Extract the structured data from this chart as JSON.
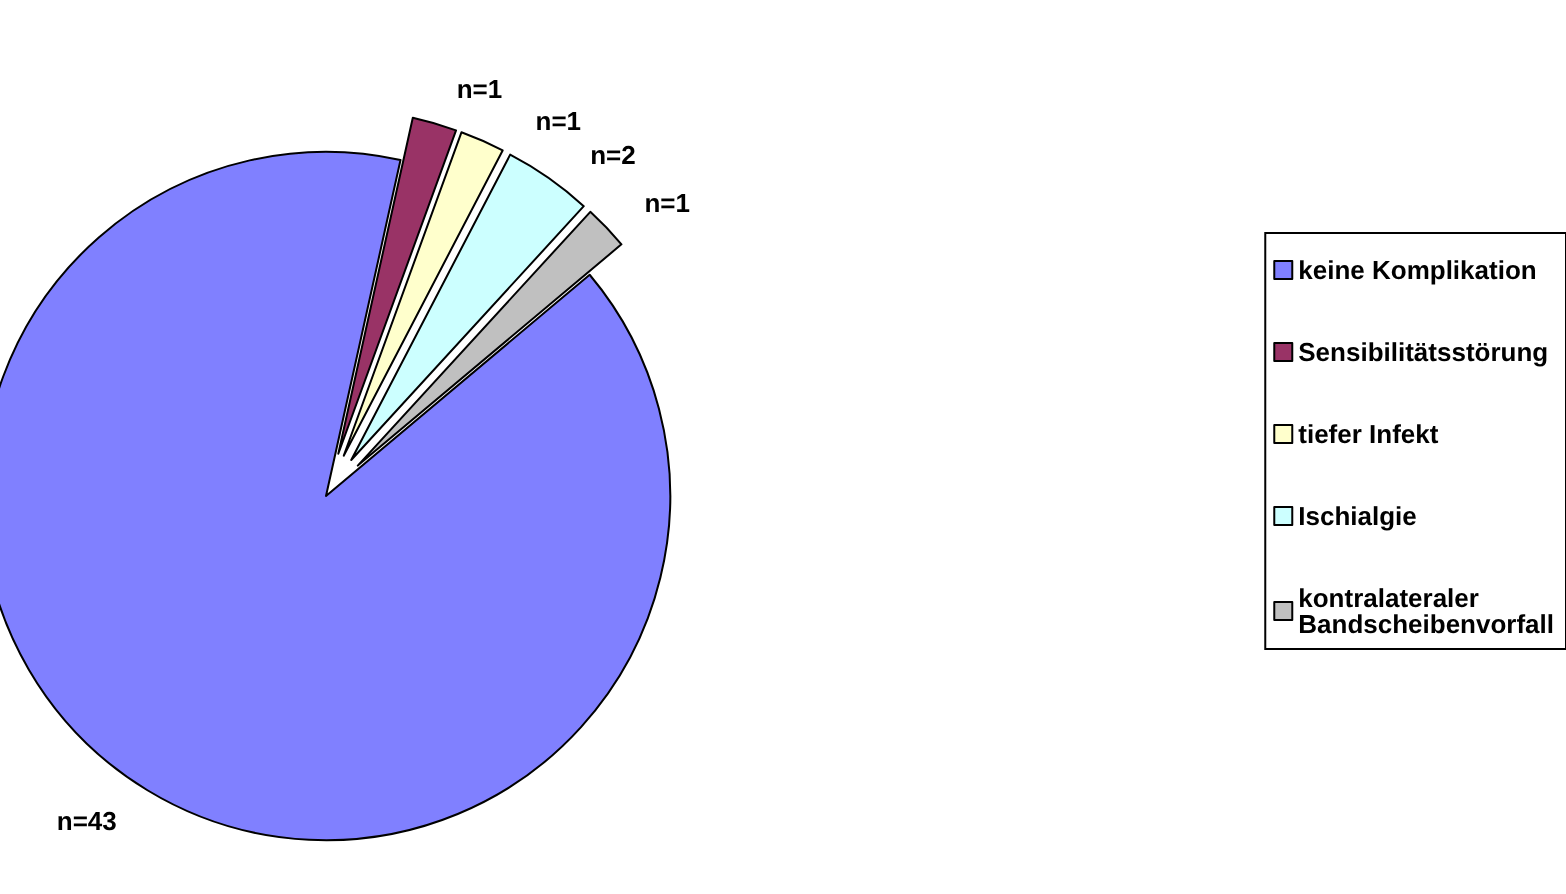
{
  "chart_data": {
    "type": "pie",
    "categories": [
      "keine Komplikation",
      "Sensibilitätsstörung",
      "tiefer Infekt",
      "Ischialgie",
      "kontralateraler Bandscheibenvorfall"
    ],
    "values": [
      43,
      1,
      1,
      2,
      1
    ],
    "colors": [
      "#8080ff",
      "#993366",
      "#ffffcc",
      "#ccffff",
      "#c0c0c0"
    ],
    "value_labels": [
      "n=43",
      "n=1",
      "n=1",
      "n=2",
      "n=1"
    ],
    "legend": "right"
  }
}
